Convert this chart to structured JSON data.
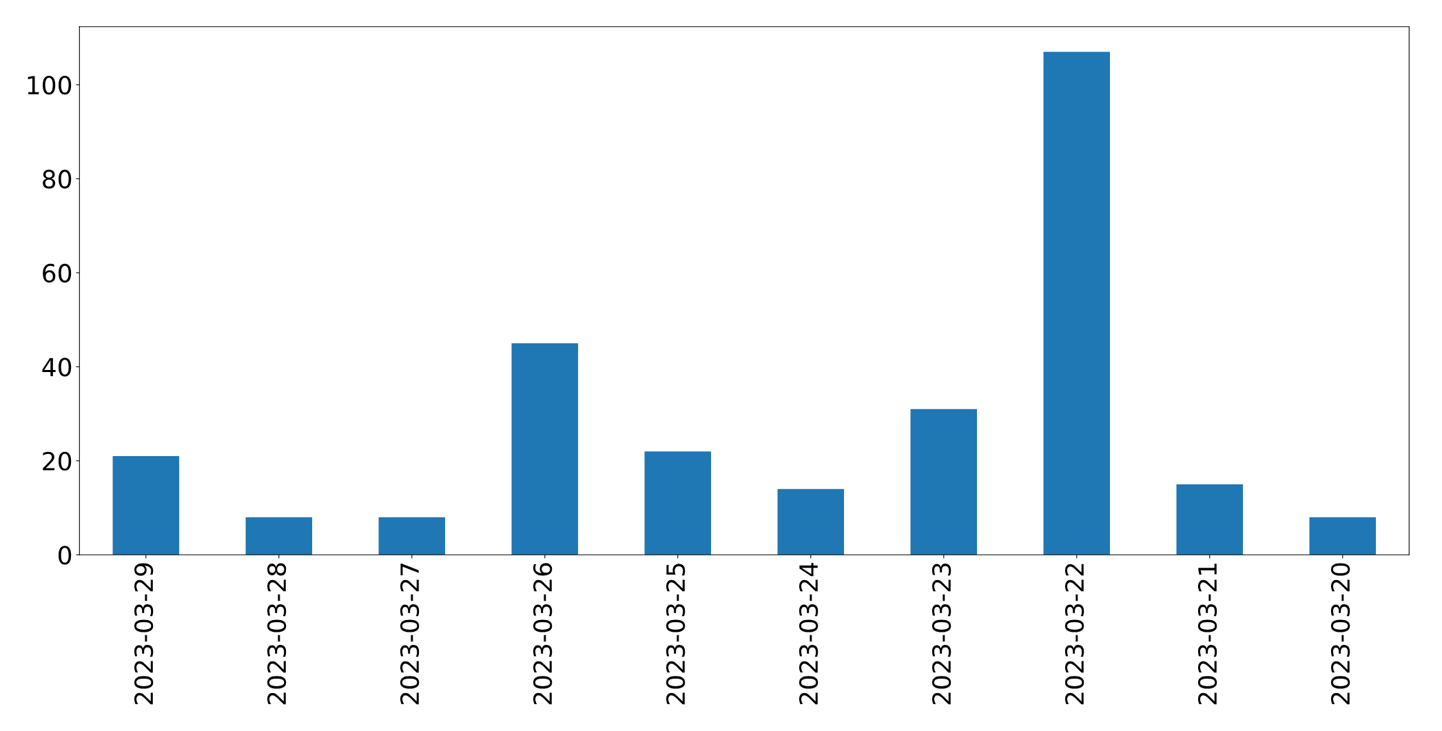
{
  "chart_data": {
    "type": "bar",
    "categories": [
      "2023-03-29",
      "2023-03-28",
      "2023-03-27",
      "2023-03-26",
      "2023-03-25",
      "2023-03-24",
      "2023-03-23",
      "2023-03-22",
      "2023-03-21",
      "2023-03-20"
    ],
    "values": [
      21,
      8,
      8,
      45,
      22,
      14,
      31,
      107,
      15,
      8
    ],
    "color": "#1f77b4",
    "ylim": [
      0,
      112.35
    ],
    "yticks": [
      0,
      20,
      40,
      60,
      80,
      100
    ],
    "grid": false,
    "legend": false
  }
}
